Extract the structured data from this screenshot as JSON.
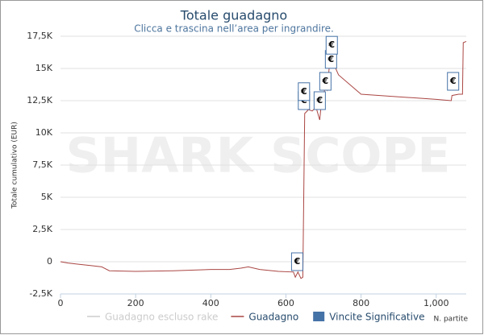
{
  "chart_data": {
    "type": "line",
    "title": "Totale guadagno",
    "subtitle": "Clicca e trascina nell’area per ingrandire.",
    "watermark": "SHARK SCOPE",
    "x_label": "N. partite",
    "y_label": "Totale cumulativo (EUR)",
    "xlim": [
      0,
      1080
    ],
    "ylim": [
      -2500,
      17500
    ],
    "xticks": [
      0,
      200,
      400,
      600,
      800,
      {
        "value": 1000,
        "label": "1,000"
      }
    ],
    "yticks": [
      {
        "value": -2500,
        "label": "-2,5K"
      },
      0,
      {
        "value": 2500,
        "label": "2,5K"
      },
      {
        "value": 5000,
        "label": "5K"
      },
      {
        "value": 7500,
        "label": "7,5K"
      },
      {
        "value": 10000,
        "label": "10K"
      },
      {
        "value": 12500,
        "label": "12,5K"
      },
      {
        "value": 15000,
        "label": "15K"
      },
      {
        "value": 17500,
        "label": "17,5K"
      }
    ],
    "grid": true,
    "series": [
      {
        "name": "Guadagno escluso rake",
        "color": "#cccccc",
        "visible": false
      },
      {
        "name": "Guadagno",
        "color": "#aa4643",
        "visible": true,
        "x": [
          0,
          20,
          50,
          80,
          110,
          130,
          200,
          300,
          400,
          450,
          480,
          500,
          530,
          580,
          620,
          625,
          632,
          640,
          645,
          650,
          660,
          670,
          680,
          690,
          695,
          700,
          705,
          710,
          715,
          720,
          722,
          725,
          740,
          780,
          800,
          850,
          900,
          950,
          1000,
          1040,
          1042,
          1060,
          1070,
          1072,
          1080
        ],
        "values": [
          0,
          -100,
          -200,
          -300,
          -400,
          -700,
          -750,
          -700,
          -600,
          -600,
          -500,
          -400,
          -600,
          -750,
          -800,
          -1200,
          -800,
          -1300,
          -1200,
          11500,
          11800,
          11700,
          12000,
          11000,
          12500,
          13000,
          13500,
          13300,
          15000,
          16000,
          17000,
          15500,
          14500,
          13500,
          13000,
          12900,
          12800,
          12700,
          12600,
          12500,
          12900,
          13000,
          13000,
          17000,
          17100
        ]
      },
      {
        "name": "Vincite Significative",
        "color": "#4572a7",
        "visible": true,
        "marker_label": "€",
        "x": [
          630,
          648,
          648,
          690,
          705,
          720,
          722,
          1045
        ],
        "values": [
          0,
          12500,
          13200,
          12500,
          14000,
          15700,
          16800,
          14000
        ]
      }
    ]
  }
}
